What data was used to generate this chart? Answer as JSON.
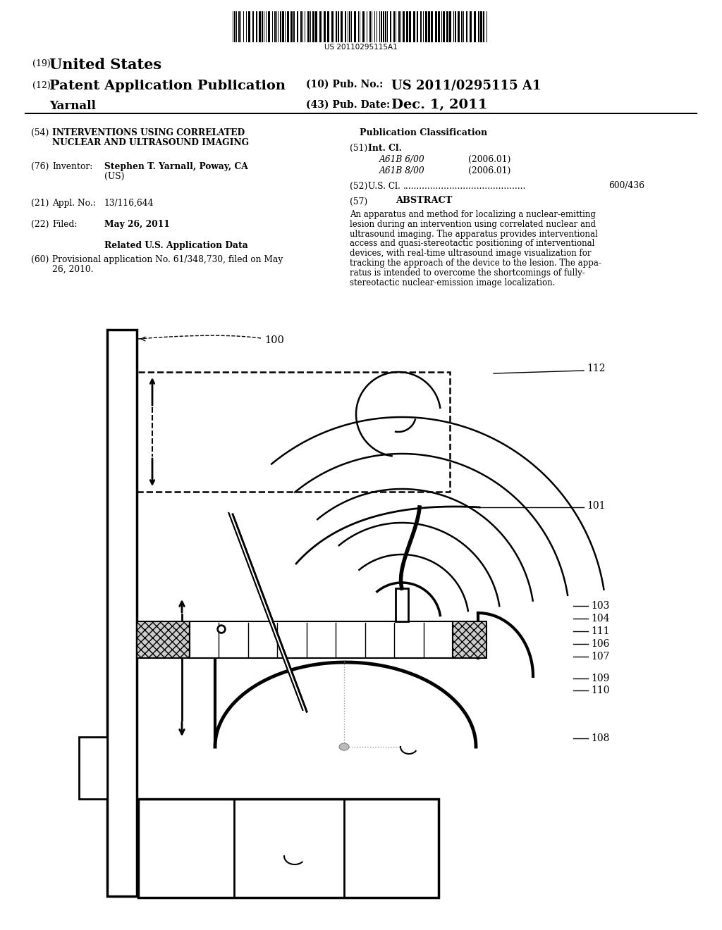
{
  "background_color": "#ffffff",
  "page_width": 10.24,
  "page_height": 13.2,
  "barcode_text": "US 20110295115A1",
  "header": {
    "country_prefix": "(19)",
    "country": "United States",
    "type_prefix": "(12)",
    "type": "Patent Application Publication",
    "pub_no_prefix": "(10) Pub. No.:",
    "pub_no": "US 2011/0295115 A1",
    "inventor_name": "Yarnall",
    "pub_date_prefix": "(43) Pub. Date:",
    "pub_date": "Dec. 1, 2011"
  },
  "left_col": {
    "title_num": "(54)",
    "title_line1": "INTERVENTIONS USING CORRELATED",
    "title_line2": "NUCLEAR AND ULTRASOUND IMAGING",
    "inventor_num": "(76)",
    "inventor_label": "Inventor:",
    "inventor_val": "Stephen T. Yarnall, Poway, CA",
    "inventor_val2": "(US)",
    "appl_num": "(21)",
    "appl_label": "Appl. No.:",
    "appl_val": "13/116,644",
    "filed_num": "(22)",
    "filed_label": "Filed:",
    "filed_val": "May 26, 2011",
    "related_title": "Related U.S. Application Data",
    "related_num": "(60)",
    "related_val": "Provisional application No. 61/348,730, filed on May",
    "related_val2": "26, 2010."
  },
  "right_col": {
    "pub_class_title": "Publication Classification",
    "intl_cl_num": "(51)",
    "intl_cl_label": "Int. Cl.",
    "intl_cl_1_code": "A61B 6/00",
    "intl_cl_1_year": "(2006.01)",
    "intl_cl_2_code": "A61B 8/00",
    "intl_cl_2_year": "(2006.01)",
    "us_cl_num": "(52)",
    "us_cl_label": "U.S. Cl.",
    "us_cl_dots": ".............................................",
    "us_cl_val": "600/436",
    "abstract_num": "(57)",
    "abstract_title": "ABSTRACT",
    "abstract_lines": [
      "An apparatus and method for localizing a nuclear-emitting",
      "lesion during an intervention using correlated nuclear and",
      "ultrasound imaging. The apparatus provides interventional",
      "access and quasi-stereotactic positioning of interventional",
      "devices, with real-time ultrasound image visualization for",
      "tracking the approach of the device to the lesion. The appa-",
      "ratus is intended to overcome the shortcomings of fully-",
      "stereotactic nuclear-emission image localization."
    ]
  }
}
